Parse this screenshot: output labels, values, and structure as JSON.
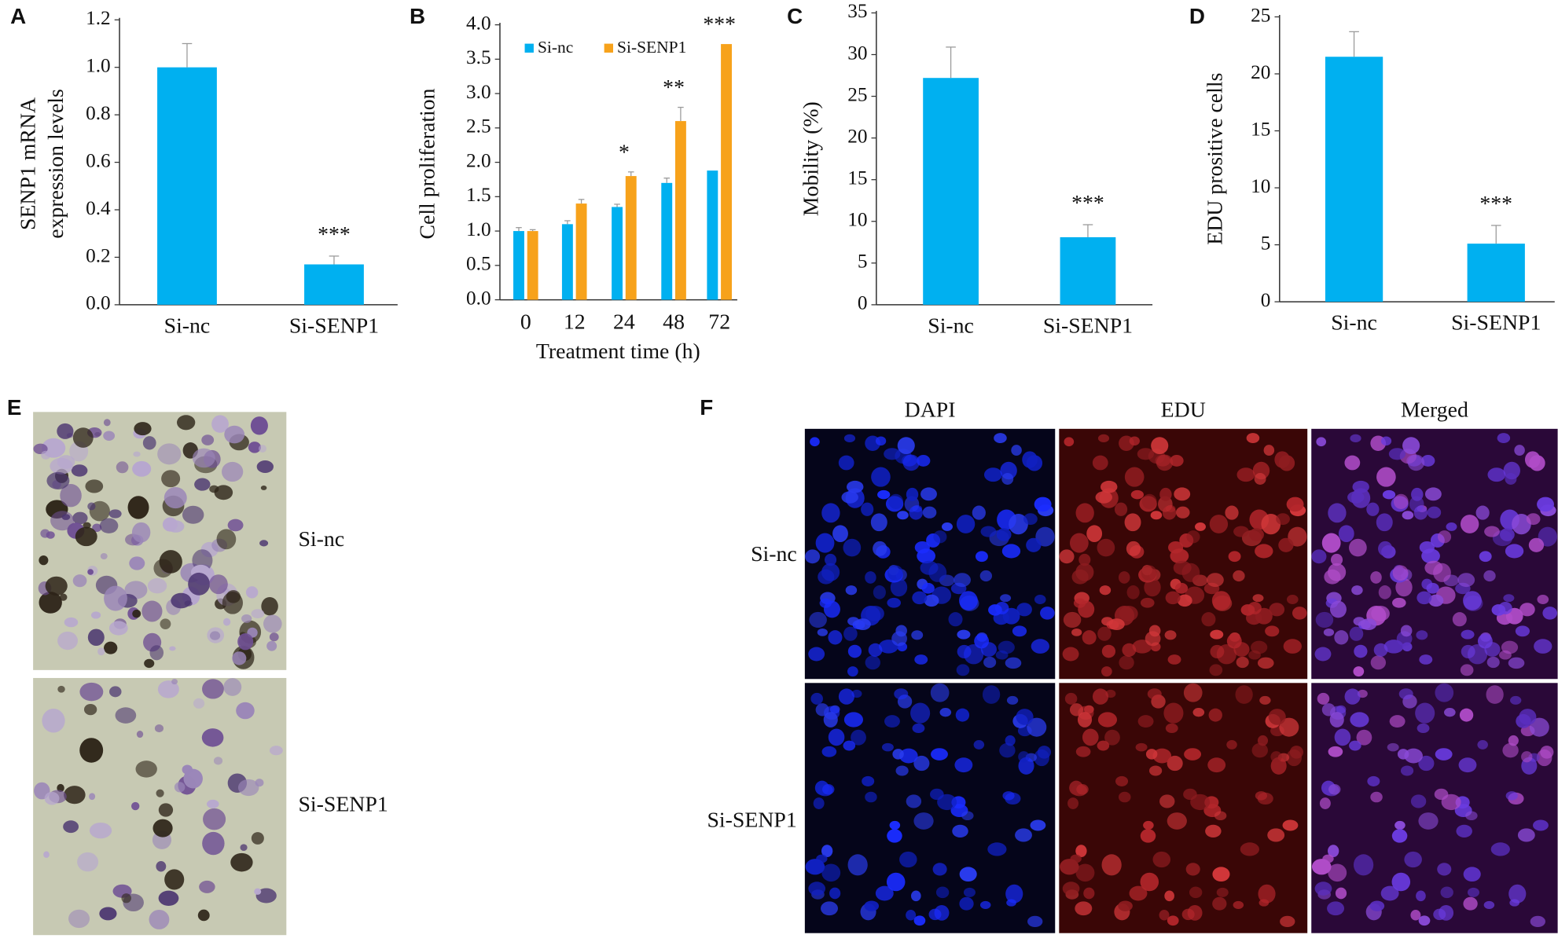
{
  "chart_data": [
    {
      "type": "bar",
      "label": "A",
      "y_label": [
        "SENP1 mRNA",
        "expression levels"
      ],
      "categories": [
        "Si-nc",
        "Si-SENP1"
      ],
      "values": [
        1.0,
        0.17
      ],
      "errors": [
        0.1,
        0.035
      ],
      "annotations": [
        null,
        "***"
      ],
      "color": "#00b0f0",
      "ylim": [
        0,
        1.2
      ],
      "yticks": [
        {
          "value": 0,
          "label": "0.0"
        },
        0.2,
        0.4,
        0.6,
        0.8,
        {
          "value": 1,
          "label": "1.0"
        },
        1.2
      ]
    },
    {
      "type": "grouped-bar",
      "label": "B",
      "y_label": "Cell proliferation",
      "x_label": "Treatment time (h)",
      "categories": [
        "0",
        "12",
        "24",
        "48",
        "72"
      ],
      "series": [
        {
          "name": "Si-nc",
          "color": "#00b0f0",
          "values": [
            1.0,
            1.1,
            1.35,
            1.7,
            1.88
          ],
          "errors": [
            0.05,
            0.05,
            0.04,
            0.07,
            0
          ]
        },
        {
          "name": "Si-SENP1",
          "color": "#f7a21b",
          "values": [
            1.0,
            1.4,
            1.8,
            2.6,
            3.72
          ],
          "errors": [
            0.02,
            0.06,
            0.06,
            0.2,
            0
          ]
        }
      ],
      "annotations": [
        null,
        null,
        "*",
        "**",
        "***"
      ],
      "ylim": [
        0,
        4
      ],
      "yticks": [
        {
          "value": 0,
          "label": "0.0"
        },
        0.5,
        {
          "value": 1,
          "label": "1.0"
        },
        1.5,
        {
          "value": 2,
          "label": "2.0"
        },
        2.5,
        {
          "value": 3,
          "label": "3.0"
        },
        3.5,
        {
          "value": 4,
          "label": "4.0"
        }
      ],
      "legend": "top-left"
    },
    {
      "type": "bar",
      "label": "C",
      "y_label": "Mobility (%)",
      "categories": [
        "Si-nc",
        "Si-SENP1"
      ],
      "values": [
        27.2,
        8.1
      ],
      "errors": [
        3.7,
        1.5
      ],
      "annotations": [
        null,
        "***"
      ],
      "color": "#00b0f0",
      "ylim": [
        0,
        35
      ],
      "yticks": [
        0,
        5,
        10,
        15,
        20,
        25,
        30,
        35
      ]
    },
    {
      "type": "bar",
      "label": "D",
      "y_label": "EDU prositive cells",
      "categories": [
        "Si-nc",
        "Si-SENP1"
      ],
      "values": [
        21.5,
        5.1
      ],
      "errors": [
        2.2,
        1.6
      ],
      "annotations": [
        null,
        "***"
      ],
      "color": "#00b0f0",
      "ylim": [
        0,
        25
      ],
      "yticks": [
        0,
        5,
        10,
        15,
        20,
        25
      ]
    }
  ],
  "figure_panels": [
    {
      "label": "E",
      "rows": [
        "Si-nc",
        "Si-SENP1"
      ]
    },
    {
      "label": "F",
      "columns": [
        "DAPI",
        "EDU",
        "Merged"
      ],
      "rows": [
        "Si-nc",
        "Si-SENP1"
      ]
    }
  ]
}
